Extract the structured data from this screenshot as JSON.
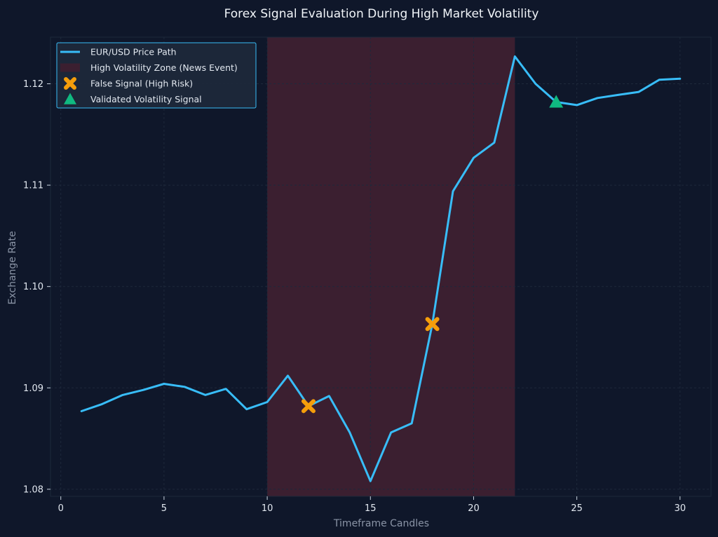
{
  "colors": {
    "background": "#0f172a",
    "plot_background": "#0f172a",
    "price_line": "#38bdf8",
    "volatility_zone": "#3b1f30",
    "false_signal": "#f59e0b",
    "validated_signal": "#10b981",
    "grid": "#1e293b",
    "legend_border": "#38bdf8",
    "legend_fill": "#1e293b"
  },
  "chart_data": {
    "type": "line",
    "title": "Forex Signal Evaluation During High Market Volatility",
    "xlabel": "Timeframe Candles",
    "ylabel": "Exchange Rate",
    "xlim": [
      -0.5,
      31.5
    ],
    "ylim": [
      1.0793,
      1.1246
    ],
    "xticks": [
      0,
      5,
      10,
      15,
      20,
      25,
      30
    ],
    "yticks": [
      1.08,
      1.09,
      1.1,
      1.11,
      1.12
    ],
    "xtick_labels": [
      "0",
      "5",
      "10",
      "15",
      "20",
      "25",
      "30"
    ],
    "ytick_labels": [
      "1.08",
      "1.09",
      "1.10",
      "1.11",
      "1.12"
    ],
    "grid": true,
    "legend_position": "top-left",
    "series": [
      {
        "name": "EUR/USD Price Path",
        "x": [
          1,
          2,
          3,
          4,
          5,
          6,
          7,
          8,
          9,
          10,
          11,
          12,
          13,
          14,
          15,
          16,
          17,
          18,
          19,
          20,
          21,
          22,
          23,
          24,
          25,
          26,
          27,
          28,
          29,
          30
        ],
        "y": [
          1.0877,
          1.0884,
          1.0893,
          1.0898,
          1.0904,
          1.0901,
          1.0893,
          1.0899,
          1.0879,
          1.0886,
          1.0912,
          1.0882,
          1.0892,
          1.0856,
          1.0808,
          1.0856,
          1.0865,
          1.0963,
          1.1094,
          1.1127,
          1.1142,
          1.1227,
          1.12,
          1.1182,
          1.1179,
          1.1186,
          1.1189,
          1.1192,
          1.1204,
          1.1205
        ]
      }
    ],
    "zones": [
      {
        "name": "High Volatility Zone (News Event)",
        "x_start": 10,
        "x_end": 22
      }
    ],
    "markers": [
      {
        "name": "False Signal (High Risk)",
        "shape": "x",
        "points": [
          {
            "x": 12,
            "y": 1.0882
          },
          {
            "x": 18,
            "y": 1.0963
          }
        ]
      },
      {
        "name": "Validated Volatility Signal",
        "shape": "triangle",
        "points": [
          {
            "x": 24,
            "y": 1.1182
          }
        ]
      }
    ],
    "legend": [
      {
        "label": "EUR/USD Price Path",
        "kind": "line"
      },
      {
        "label": "High Volatility Zone (News Event)",
        "kind": "zone"
      },
      {
        "label": "False Signal (High Risk)",
        "kind": "x"
      },
      {
        "label": "Validated Volatility Signal",
        "kind": "triangle"
      }
    ]
  }
}
